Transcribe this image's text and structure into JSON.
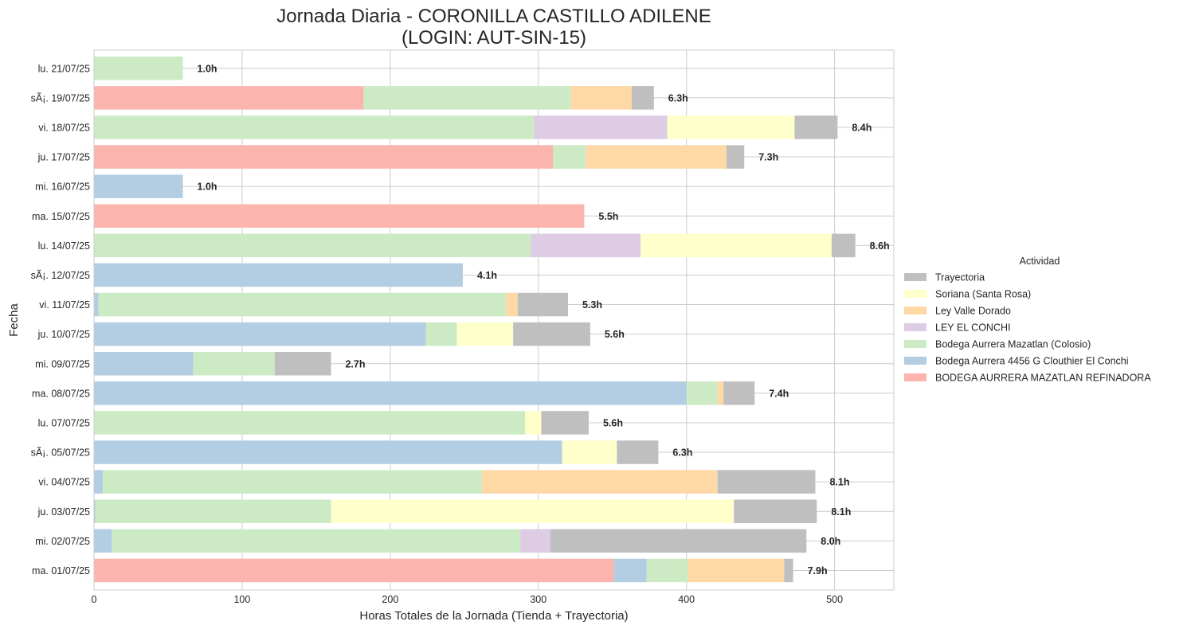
{
  "chart_data": {
    "type": "bar",
    "orientation": "horizontal",
    "stacked": true,
    "title": "Jornada Diaria - CORONILLA CASTILLO ADILENE",
    "subtitle": "(LOGIN: AUT-SIN-15)",
    "xlabel": "Horas Totales de la Jornada (Tienda + Trayectoria)",
    "ylabel": "Fecha",
    "xlim": [
      0,
      540
    ],
    "xticks": [
      0,
      100,
      200,
      300,
      400,
      500
    ],
    "grid": true,
    "legend": {
      "title": "Actividad",
      "placement": "right",
      "order": [
        "Trayectoria",
        "Soriana (Santa Rosa)",
        "Ley Valle Dorado",
        "LEY EL CONCHI",
        "Bodega Aurrera Mazatlan (Colosio)",
        "Bodega Aurrera 4456 G Clouthier El Conchi",
        "BODEGA AURRERA MAZATLAN REFINADORA"
      ]
    },
    "categories": [
      "lu. 21/07/25",
      "sÃ¡. 19/07/25",
      "vi. 18/07/25",
      "ju. 17/07/25",
      "mi. 16/07/25",
      "ma. 15/07/25",
      "lu. 14/07/25",
      "sÃ¡. 12/07/25",
      "vi. 11/07/25",
      "ju. 10/07/25",
      "mi. 09/07/25",
      "ma. 08/07/25",
      "lu. 07/07/25",
      "sÃ¡. 05/07/25",
      "vi. 04/07/25",
      "ju. 03/07/25",
      "mi. 02/07/25",
      "ma. 01/07/25"
    ],
    "totals": [
      "1.0h",
      "6.3h",
      "8.4h",
      "7.3h",
      "1.0h",
      "5.5h",
      "8.6h",
      "4.1h",
      "5.3h",
      "5.6h",
      "2.7h",
      "7.4h",
      "5.6h",
      "6.3h",
      "8.1h",
      "8.1h",
      "8.0h",
      "7.9h"
    ],
    "series": [
      {
        "name": "BODEGA AURRERA MAZATLAN REFINADORA",
        "color": "#fbb4ae",
        "values": [
          0,
          182,
          0,
          310,
          0,
          331,
          0,
          0,
          0,
          0,
          0,
          0,
          0,
          0,
          0,
          0,
          0,
          351
        ]
      },
      {
        "name": "Bodega Aurrera 4456 G Clouthier El Conchi",
        "color": "#b3cde3",
        "values": [
          0,
          0,
          0,
          0,
          60,
          0,
          0,
          249,
          3,
          224,
          67,
          400,
          0,
          316,
          6,
          1,
          12,
          22
        ]
      },
      {
        "name": "Bodega Aurrera Mazatlan (Colosio)",
        "color": "#ccebc5",
        "values": [
          60,
          140,
          297,
          22,
          0,
          0,
          295,
          0,
          275,
          21,
          55,
          21,
          291,
          0,
          256,
          159,
          276,
          28
        ]
      },
      {
        "name": "LEY EL CONCHI",
        "color": "#decbe4",
        "values": [
          0,
          0,
          90,
          0,
          0,
          0,
          74,
          0,
          0,
          0,
          0,
          0,
          0,
          0,
          0,
          0,
          20,
          0
        ]
      },
      {
        "name": "Ley Valle Dorado",
        "color": "#fed9a6",
        "values": [
          0,
          41,
          0,
          95,
          0,
          0,
          0,
          0,
          8,
          0,
          0,
          4,
          0,
          0,
          159,
          0,
          0,
          65
        ]
      },
      {
        "name": "Soriana (Santa Rosa)",
        "color": "#ffffcc",
        "values": [
          0,
          0,
          86,
          0,
          0,
          0,
          129,
          0,
          0,
          38,
          0,
          0,
          11,
          37,
          0,
          272,
          0,
          0
        ]
      },
      {
        "name": "Trayectoria",
        "color": "#bfbfbf",
        "values": [
          0,
          15,
          29,
          12,
          0,
          0,
          16,
          0,
          34,
          52,
          38,
          21,
          32,
          28,
          66,
          56,
          173,
          6
        ]
      }
    ]
  }
}
